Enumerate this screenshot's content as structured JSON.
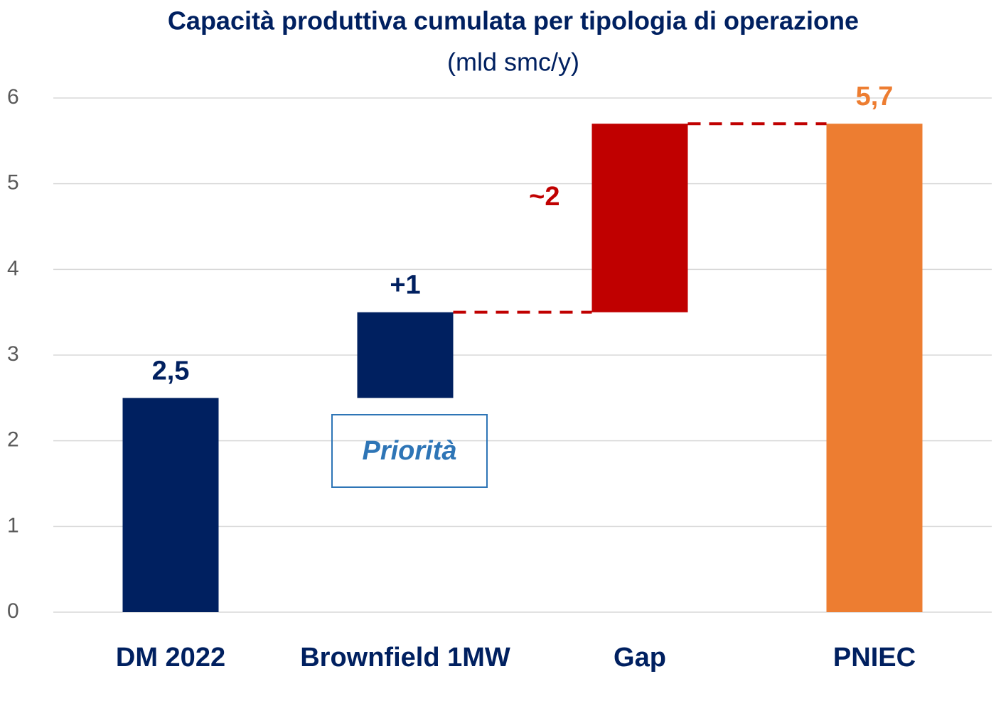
{
  "chart_data": {
    "type": "waterfall",
    "title": "Capacità produttiva cumulata per tipologia di operazione",
    "subtitle": "(mld smc/y)",
    "categories": [
      "DM 2022",
      "Brownfield 1MW",
      "Gap",
      "PNIEC"
    ],
    "values": [
      2.5,
      1,
      2.2,
      5.7
    ],
    "value_labels": [
      "2,5",
      "+1",
      "~2",
      "5,7"
    ],
    "measure": [
      "absolute",
      "relative",
      "relative",
      "total"
    ],
    "label_position": [
      "top",
      "top",
      "left",
      "top"
    ],
    "colors": [
      "#002060",
      "#002060",
      "#c00000",
      "#ed7d31"
    ],
    "connector_color": "#c00000",
    "annotation": "Priorità",
    "ylim": [
      0,
      6
    ],
    "yticks": [
      0,
      1,
      2,
      3,
      4,
      5,
      6
    ],
    "grid": true
  }
}
